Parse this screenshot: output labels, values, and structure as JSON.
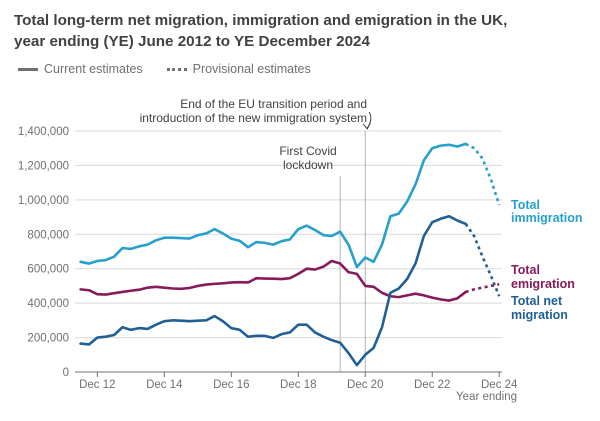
{
  "title_line1": "Total long-term net migration, immigration and emigration in the UK,",
  "title_line2": "year ending (YE) June 2012 to YE December 2024",
  "legend": {
    "current": "Current estimates",
    "provisional": "Provisional estimates"
  },
  "colors": {
    "immigration": "#27a0cc",
    "emigration": "#871a5b",
    "net_migration": "#206095",
    "grid": "#d9d9d9",
    "axis": "#707071",
    "vline": "#b3b3b3"
  },
  "chart_data": {
    "type": "line",
    "title": "Total long-term net migration, immigration and emigration in the UK, year ending (YE) June 2012 to YE December 2024",
    "xlabel": "Year ending",
    "ylabel": "",
    "ylim": [
      0,
      1400000
    ],
    "y_ticks": [
      0,
      200000,
      400000,
      600000,
      800000,
      1000000,
      1200000,
      1400000
    ],
    "y_tick_labels": [
      "0",
      "200,000",
      "400,000",
      "600,000",
      "800,000",
      "1,000,000",
      "1,200,000",
      "1,400,000"
    ],
    "x_tick_labels": [
      "Dec 12",
      "Dec 14",
      "Dec 16",
      "Dec 18",
      "Dec 20",
      "Dec 22",
      "Dec 24"
    ],
    "x_ticks": [
      2012.917,
      2014.917,
      2016.917,
      2018.917,
      2020.917,
      2022.917,
      2024.917
    ],
    "grid": true,
    "series": [
      {
        "key": "immigration",
        "name": "Total immigration",
        "x": [
          2012.417,
          2012.667,
          2012.917,
          2013.167,
          2013.417,
          2013.667,
          2013.917,
          2014.167,
          2014.417,
          2014.667,
          2014.917,
          2015.167,
          2015.417,
          2015.667,
          2015.917,
          2016.167,
          2016.417,
          2016.667,
          2016.917,
          2017.167,
          2017.417,
          2017.667,
          2017.917,
          2018.167,
          2018.417,
          2018.667,
          2018.917,
          2019.167,
          2019.417,
          2019.667,
          2019.917,
          2020.167,
          2020.417,
          2020.667,
          2020.917,
          2021.167,
          2021.417,
          2021.667,
          2021.917,
          2022.167,
          2022.417,
          2022.667,
          2022.917,
          2023.167,
          2023.417,
          2023.667,
          2023.917,
          2024.167,
          2024.417,
          2024.667,
          2024.917
        ],
        "y": [
          640000,
          630000,
          645000,
          650000,
          670000,
          720000,
          715000,
          730000,
          740000,
          765000,
          780000,
          780000,
          778000,
          775000,
          795000,
          805000,
          830000,
          805000,
          775000,
          762000,
          725000,
          755000,
          750000,
          740000,
          760000,
          770000,
          830000,
          850000,
          825000,
          795000,
          790000,
          815000,
          740000,
          610000,
          665000,
          640000,
          740000,
          905000,
          920000,
          990000,
          1090000,
          1230000,
          1300000,
          1315000,
          1320000,
          1310000,
          1325000,
          1300000,
          1240000,
          1120000,
          970000
        ],
        "provisional_from_index": 46
      },
      {
        "key": "emigration",
        "name": "Total emigration",
        "x": [
          2012.417,
          2012.667,
          2012.917,
          2013.167,
          2013.417,
          2013.667,
          2013.917,
          2014.167,
          2014.417,
          2014.667,
          2014.917,
          2015.167,
          2015.417,
          2015.667,
          2015.917,
          2016.167,
          2016.417,
          2016.667,
          2016.917,
          2017.167,
          2017.417,
          2017.667,
          2017.917,
          2018.167,
          2018.417,
          2018.667,
          2018.917,
          2019.167,
          2019.417,
          2019.667,
          2019.917,
          2020.167,
          2020.417,
          2020.667,
          2020.917,
          2021.167,
          2021.417,
          2021.667,
          2021.917,
          2022.167,
          2022.417,
          2022.667,
          2022.917,
          2023.167,
          2023.417,
          2023.667,
          2023.917,
          2024.167,
          2024.417,
          2024.667,
          2024.917
        ],
        "y": [
          480000,
          475000,
          452000,
          450000,
          458000,
          465000,
          472000,
          478000,
          490000,
          495000,
          490000,
          485000,
          483000,
          488000,
          500000,
          508000,
          512000,
          515000,
          520000,
          522000,
          520000,
          545000,
          543000,
          542000,
          540000,
          545000,
          570000,
          600000,
          595000,
          612000,
          645000,
          630000,
          580000,
          570000,
          500000,
          495000,
          460000,
          440000,
          435000,
          445000,
          455000,
          445000,
          432000,
          422000,
          415000,
          428000,
          465000,
          480000,
          490000,
          500000,
          510000
        ],
        "provisional_from_index": 46
      },
      {
        "key": "net_migration",
        "name": "Total net migration",
        "x": [
          2012.417,
          2012.667,
          2012.917,
          2013.167,
          2013.417,
          2013.667,
          2013.917,
          2014.167,
          2014.417,
          2014.667,
          2014.917,
          2015.167,
          2015.417,
          2015.667,
          2015.917,
          2016.167,
          2016.417,
          2016.667,
          2016.917,
          2017.167,
          2017.417,
          2017.667,
          2017.917,
          2018.167,
          2018.417,
          2018.667,
          2018.917,
          2019.167,
          2019.417,
          2019.667,
          2019.917,
          2020.167,
          2020.417,
          2020.667,
          2020.917,
          2021.167,
          2021.417,
          2021.667,
          2021.917,
          2022.167,
          2022.417,
          2022.667,
          2022.917,
          2023.167,
          2023.417,
          2023.667,
          2023.917,
          2024.167,
          2024.417,
          2024.667,
          2024.917
        ],
        "y": [
          165000,
          160000,
          200000,
          205000,
          215000,
          260000,
          245000,
          255000,
          250000,
          275000,
          295000,
          300000,
          298000,
          295000,
          298000,
          300000,
          325000,
          295000,
          255000,
          245000,
          205000,
          210000,
          210000,
          198000,
          220000,
          230000,
          275000,
          275000,
          230000,
          205000,
          185000,
          170000,
          110000,
          40000,
          100000,
          140000,
          260000,
          460000,
          485000,
          540000,
          630000,
          790000,
          870000,
          890000,
          905000,
          880000,
          860000,
          790000,
          670000,
          560000,
          440000
        ],
        "provisional_from_index": 46
      }
    ],
    "annotations": [
      {
        "key": "covid",
        "x": 2020.167,
        "lines": [
          "First Covid",
          "lockdown"
        ]
      },
      {
        "key": "eu",
        "x": 2020.917,
        "lines": [
          "End of the EU transition period and",
          "introduction of the new immigration system"
        ]
      }
    ],
    "series_labels": {
      "immigration": [
        "Total",
        "immigration"
      ],
      "emigration": [
        "Total",
        "emigration"
      ],
      "net_migration": [
        "Total net",
        "migration"
      ]
    }
  }
}
